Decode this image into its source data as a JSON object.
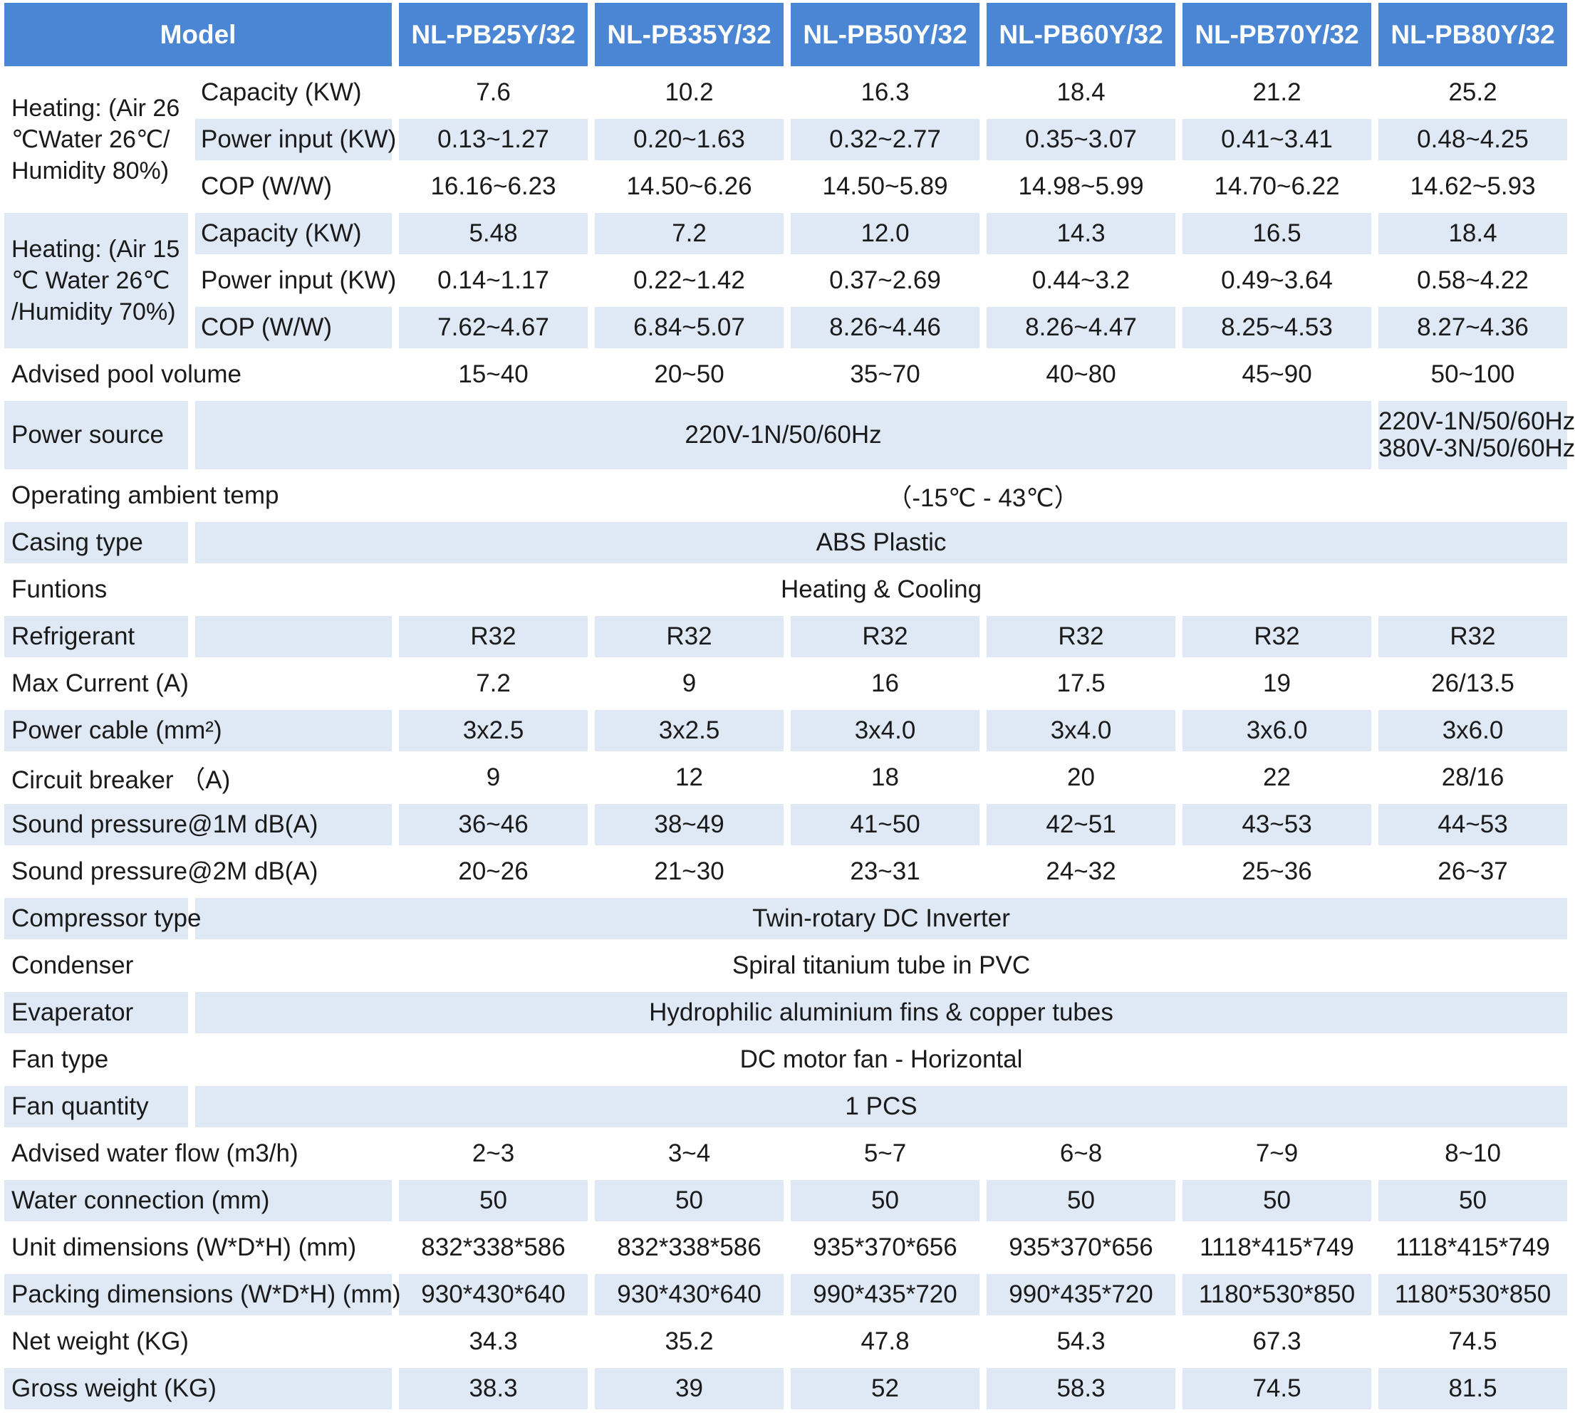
{
  "header": {
    "model_label": "Model",
    "models": [
      "NL-PB25Y/32",
      "NL-PB35Y/32",
      "NL-PB50Y/32",
      "NL-PB60Y/32",
      "NL-PB70Y/32",
      "NL-PB80Y/32"
    ]
  },
  "heating_26": {
    "label": "Heating: (Air 26 ℃Water 26℃/ Humidity 80%)",
    "rows": [
      {
        "label": "Capacity  (KW)",
        "values": [
          "7.6",
          "10.2",
          "16.3",
          "18.4",
          "21.2",
          "25.2"
        ]
      },
      {
        "label": "Power input  (KW)",
        "values": [
          "0.13~1.27",
          "0.20~1.63",
          "0.32~2.77",
          "0.35~3.07",
          "0.41~3.41",
          "0.48~4.25"
        ]
      },
      {
        "label": "COP (W/W)",
        "values": [
          "16.16~6.23",
          "14.50~6.26",
          "14.50~5.89",
          "14.98~5.99",
          "14.70~6.22",
          "14.62~5.93"
        ]
      }
    ]
  },
  "heating_15": {
    "label": "Heating: (Air 15 ℃ Water 26℃ /Humidity 70%)",
    "rows": [
      {
        "label": "Capacity  (KW)",
        "values": [
          "5.48",
          "7.2",
          "12.0",
          "14.3",
          "16.5",
          "18.4"
        ]
      },
      {
        "label": "Power input  (KW)",
        "values": [
          "0.14~1.17",
          "0.22~1.42",
          "0.37~2.69",
          "0.44~3.2",
          "0.49~3.64",
          "0.58~4.22"
        ]
      },
      {
        "label": "COP (W/W)",
        "values": [
          "7.62~4.67",
          "6.84~5.07",
          "8.26~4.46",
          "8.26~4.47",
          "8.25~4.53",
          "8.27~4.36"
        ]
      }
    ]
  },
  "pool_volume": {
    "label": "Advised pool volume",
    "values": [
      "15~40",
      "20~50",
      "35~70",
      "40~80",
      "45~90",
      "50~100"
    ]
  },
  "power_source": {
    "label": "Power source",
    "shared": "220V-1N/50/60Hz",
    "last_line1": "220V-1N/50/60Hz",
    "last_line2": "380V-3N/50/60Hz"
  },
  "ambient_temp": {
    "label": "Operating ambient temp",
    "value": "（-15℃ - 43℃）"
  },
  "casing": {
    "label": "Casing type",
    "value": "ABS Plastic"
  },
  "functions": {
    "label": "Funtions",
    "value": "Heating & Cooling"
  },
  "refrigerant": {
    "label": "Refrigerant",
    "values": [
      "R32",
      "R32",
      "R32",
      "R32",
      "R32",
      "R32"
    ]
  },
  "max_current": {
    "label": "Max Current (A)",
    "values": [
      "7.2",
      "9",
      "16",
      "17.5",
      "19",
      "26/13.5"
    ]
  },
  "power_cable": {
    "label": "Power cable (mm²)",
    "values": [
      "3x2.5",
      "3x2.5",
      "3x4.0",
      "3x4.0",
      "3x6.0",
      "3x6.0"
    ]
  },
  "circuit_breaker": {
    "label": "Circuit breaker （A)",
    "values": [
      "9",
      "12",
      "18",
      "20",
      "22",
      "28/16"
    ]
  },
  "sound_1m": {
    "label": "Sound pressure@1M dB(A)",
    "values": [
      "36~46",
      "38~49",
      "41~50",
      "42~51",
      "43~53",
      "44~53"
    ]
  },
  "sound_2m": {
    "label": "Sound pressure@2M dB(A)",
    "values": [
      "20~26",
      "21~30",
      "23~31",
      "24~32",
      "25~36",
      "26~37"
    ]
  },
  "compressor": {
    "label": "Compressor type",
    "value": "Twin-rotary DC Inverter"
  },
  "condenser": {
    "label": "Condenser",
    "value": "Spiral titanium tube in PVC"
  },
  "evaporator": {
    "label": "Evaperator",
    "value": "Hydrophilic aluminium fins & copper tubes"
  },
  "fan_type": {
    "label": "Fan type",
    "value": "DC motor fan - Horizontal"
  },
  "fan_qty": {
    "label": "Fan quantity",
    "value": "1 PCS"
  },
  "water_flow": {
    "label": "Advised water flow (m3/h)",
    "values": [
      "2~3",
      "3~4",
      "5~7",
      "6~8",
      "7~9",
      "8~10"
    ]
  },
  "water_conn": {
    "label": "Water connection (mm)",
    "values": [
      "50",
      "50",
      "50",
      "50",
      "50",
      "50"
    ]
  },
  "unit_dims": {
    "label": "Unit dimensions (W*D*H) (mm)",
    "values": [
      "832*338*586",
      "832*338*586",
      "935*370*656",
      "935*370*656",
      "1118*415*749",
      "1118*415*749"
    ]
  },
  "packing_dims": {
    "label": "Packing dimensions (W*D*H) (mm)",
    "values": [
      "930*430*640",
      "930*430*640",
      "990*435*720",
      "990*435*720",
      "1180*530*850",
      "1180*530*850"
    ]
  },
  "net_weight": {
    "label": "Net weight  (KG)",
    "values": [
      "34.3",
      "35.2",
      "47.8",
      "54.3",
      "67.3",
      "74.5"
    ]
  },
  "gross_weight": {
    "label": "Gross weight  (KG)",
    "values": [
      "38.3",
      "39",
      "52",
      "58.3",
      "74.5",
      "81.5"
    ]
  },
  "colors": {
    "header_bg": "#4a86d4",
    "stripe_bg": "#dfe8f5",
    "text": "#1a1a1a"
  }
}
